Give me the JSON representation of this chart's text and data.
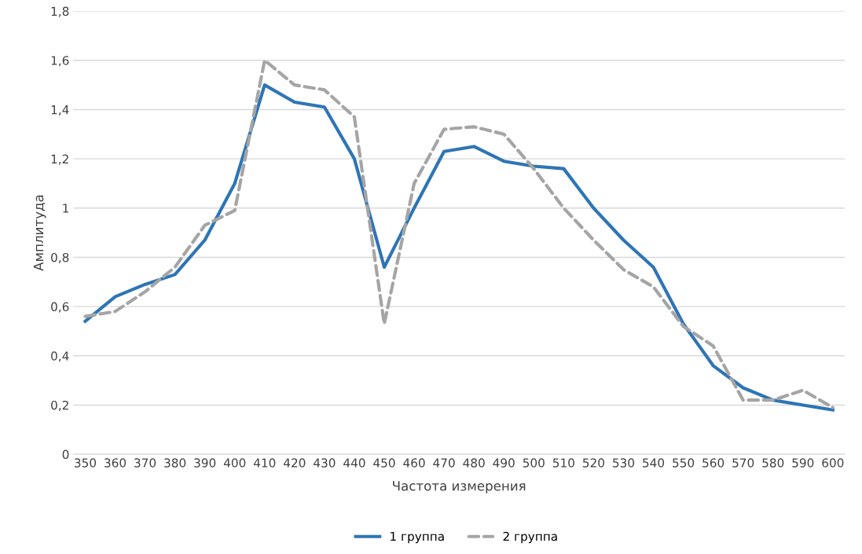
{
  "chart_data": {
    "type": "line",
    "xlabel": "Частота измерения",
    "ylabel": "Амплитуда",
    "categories": [
      "350",
      "360",
      "370",
      "380",
      "390",
      "400",
      "410",
      "420",
      "430",
      "440",
      "450",
      "460",
      "470",
      "480",
      "490",
      "500",
      "510",
      "520",
      "530",
      "540",
      "550",
      "560",
      "570",
      "580",
      "590",
      "600"
    ],
    "series": [
      {
        "name": "1 группа",
        "color": "#2e75b6",
        "line_style": "solid",
        "values": [
          0.54,
          0.64,
          0.69,
          0.73,
          0.87,
          1.1,
          1.5,
          1.43,
          1.41,
          1.2,
          0.76,
          1.0,
          1.23,
          1.25,
          1.19,
          1.17,
          1.16,
          1.0,
          0.87,
          0.76,
          0.53,
          0.36,
          0.27,
          0.22,
          0.2,
          0.18
        ]
      },
      {
        "name": "2 группа",
        "color": "#a5a5a5",
        "line_style": "dashed",
        "values": [
          0.56,
          0.58,
          0.66,
          0.76,
          0.93,
          0.99,
          1.6,
          1.5,
          1.48,
          1.37,
          0.53,
          1.1,
          1.32,
          1.33,
          1.3,
          1.16,
          1.0,
          0.87,
          0.75,
          0.68,
          0.52,
          0.44,
          0.22,
          0.22,
          0.26,
          0.19
        ]
      }
    ],
    "ylim": [
      0,
      1.8
    ],
    "yticks": [
      {
        "value": 0,
        "label": "0"
      },
      {
        "value": 0.2,
        "label": "0,2"
      },
      {
        "value": 0.4,
        "label": "0,4"
      },
      {
        "value": 0.6,
        "label": "0,6"
      },
      {
        "value": 0.8,
        "label": "0,8"
      },
      {
        "value": 1,
        "label": "1"
      },
      {
        "value": 1.2,
        "label": "1,2"
      },
      {
        "value": 1.4,
        "label": "1,4"
      },
      {
        "value": 1.6,
        "label": "1,6"
      },
      {
        "value": 1.8,
        "label": "1,8"
      }
    ],
    "grid": "y",
    "legend": "bottom",
    "marker": "none"
  }
}
